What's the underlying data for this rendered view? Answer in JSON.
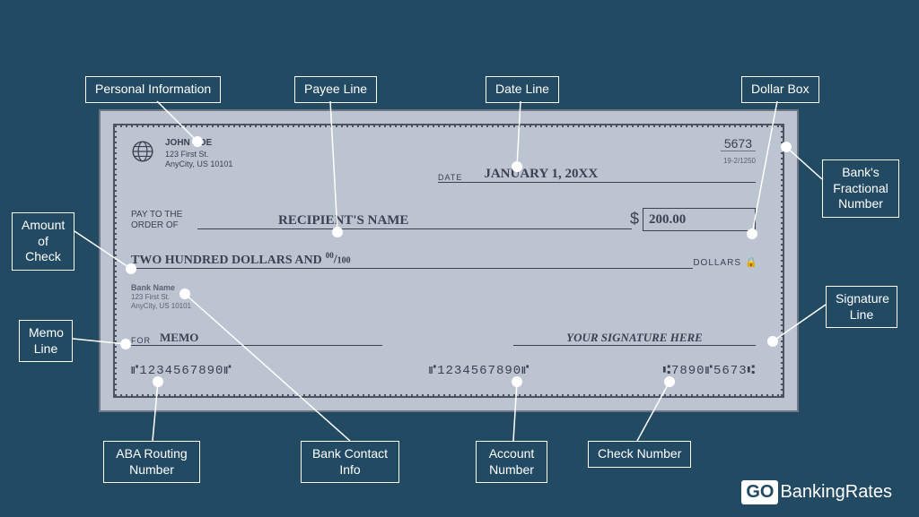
{
  "colors": {
    "bg": "#224a63",
    "check": "#bcc4d2",
    "border": "#4d5460",
    "ink": "#3a4150",
    "white": "#ffffff"
  },
  "check": {
    "personal": {
      "name": "JOHN DOE",
      "addr1": "123 First St.",
      "addr2": "AnyCity, US 10101"
    },
    "check_number": "5673",
    "fractional": "19-2/1250",
    "date": {
      "label": "DATE",
      "value": "JANUARY 1, 20XX"
    },
    "payto": {
      "label1": "PAY TO THE",
      "label2": "ORDER OF",
      "value": "RECIPIENT'S NAME"
    },
    "dollar_box": "200.00",
    "amount_words": "TWO HUNDRED DOLLARS AND",
    "amount_fraction_top": "00",
    "amount_fraction_bot": "100",
    "dollars_label": "DOLLARS",
    "bank": {
      "name": "Bank Name",
      "addr1": "123 First St.",
      "addr2": "AnyCity, US 10101"
    },
    "memo": {
      "label": "FOR",
      "value": "MEMO"
    },
    "signature": "YOUR SIGNATURE HERE",
    "micr": {
      "routing": "⑈1234567890⑈",
      "account": "⑈1234567890⑈",
      "checknum": "⑆7890⑈5673⑆"
    }
  },
  "callouts": {
    "personal_info": "Personal Information",
    "payee_line": "Payee Line",
    "date_line": "Date Line",
    "dollar_box": "Dollar Box",
    "fractional": "Bank's\nFractional\nNumber",
    "amount": "Amount\nof Check",
    "signature": "Signature\nLine",
    "memo": "Memo\nLine",
    "routing": "ABA Routing\nNumber",
    "bankinfo": "Bank Contact\nInfo",
    "account": "Account\nNumber",
    "checknum": "Check Number"
  },
  "logo": {
    "go": "GO",
    "rest": "BankingRates"
  }
}
